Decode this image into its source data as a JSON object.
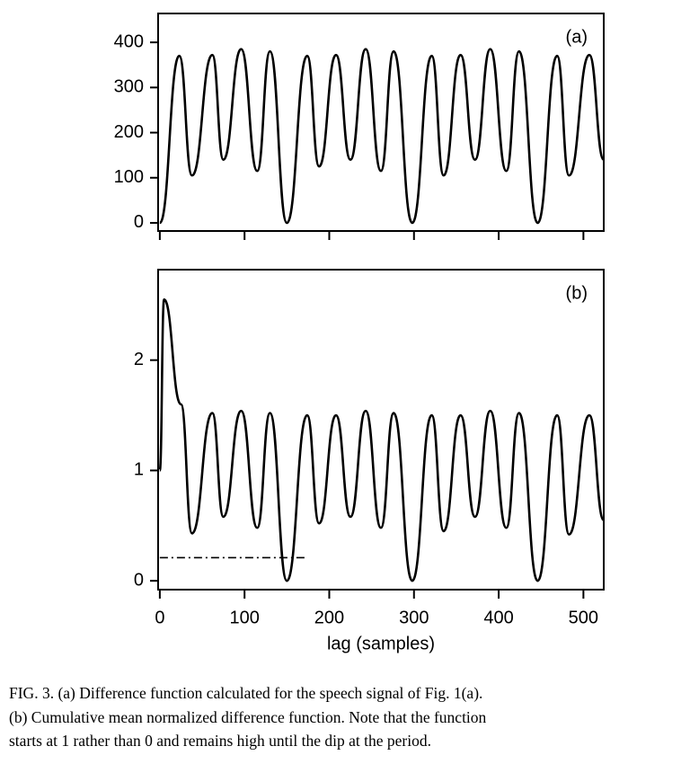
{
  "chart_data": [
    {
      "type": "line",
      "label": "(a)",
      "x": [
        0,
        23,
        38,
        62,
        75,
        96,
        115,
        130,
        150,
        174,
        188,
        208,
        225,
        243,
        261,
        276,
        298,
        321,
        335,
        355,
        372,
        390,
        409,
        424,
        446,
        469,
        483,
        507,
        524
      ],
      "series": [
        {
          "color": "#000000",
          "values": [
            0,
            370,
            105,
            372,
            140,
            385,
            115,
            380,
            0,
            370,
            125,
            372,
            140,
            385,
            115,
            380,
            0,
            370,
            105,
            372,
            140,
            385,
            115,
            380,
            0,
            370,
            105,
            372,
            140
          ]
        }
      ],
      "xlim": [
        -2,
        524
      ],
      "ylim": [
        -18,
        464
      ],
      "xticks": [
        0,
        100,
        200,
        300,
        400,
        500
      ],
      "xtick_labels": false,
      "yticks": [
        0,
        100,
        200,
        300,
        400
      ]
    },
    {
      "type": "line",
      "label": "(b)",
      "xlabel": "lag (samples)",
      "x": [
        0,
        5,
        25,
        38,
        62,
        75,
        96,
        115,
        130,
        150,
        174,
        188,
        208,
        225,
        243,
        261,
        276,
        298,
        321,
        335,
        355,
        372,
        390,
        409,
        424,
        446,
        469,
        483,
        507,
        524
      ],
      "series": [
        {
          "color": "#000000",
          "values": [
            1,
            2.55,
            1.6,
            0.43,
            1.52,
            0.58,
            1.54,
            0.48,
            1.52,
            0,
            1.5,
            0.52,
            1.5,
            0.58,
            1.54,
            0.48,
            1.52,
            0,
            1.5,
            0.45,
            1.5,
            0.58,
            1.54,
            0.48,
            1.52,
            0,
            1.5,
            0.42,
            1.5,
            0.55
          ]
        }
      ],
      "threshold": {
        "y": 0.21,
        "x": [
          0,
          172
        ],
        "dash": "dash-dot"
      },
      "xlim": [
        -2,
        524
      ],
      "ylim": [
        -0.08,
        2.82
      ],
      "xticks": [
        0,
        100,
        200,
        300,
        400,
        500
      ],
      "xtick_labels": true,
      "yticks": [
        0,
        1,
        2
      ]
    }
  ],
  "caption": [
    "FIG. 3. (a) Difference function calculated for the speech signal of Fig. 1(a).",
    "(b) Cumulative mean normalized difference function. Note that the function",
    "starts at 1 rather than 0 and remains high until the dip at the period."
  ]
}
